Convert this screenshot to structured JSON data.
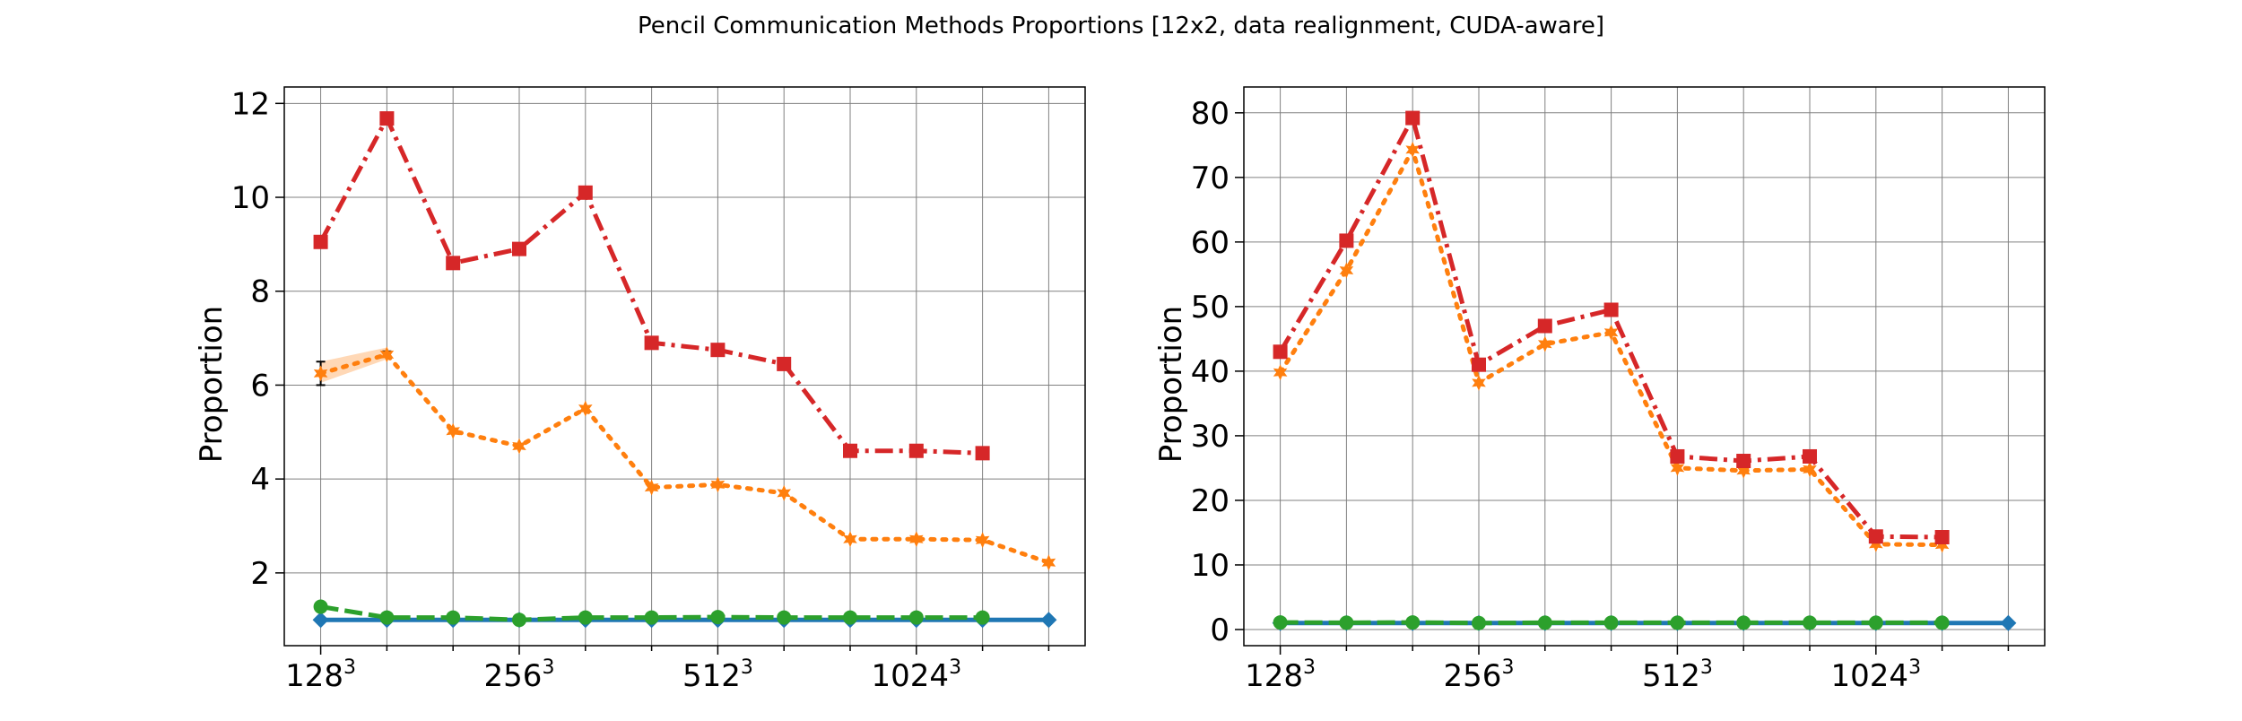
{
  "figure": {
    "title": "Pencil Communication Methods Proportions [12x2, data realignment, CUDA-aware]"
  },
  "colors": {
    "blue": "#1f77b4",
    "orange": "#ff7f0e",
    "green": "#2ca02c",
    "red": "#d62728",
    "grid": "#808080"
  },
  "chart_data": [
    {
      "type": "line",
      "ylabel": "Proportion",
      "ylim": [
        0.45,
        12.35
      ],
      "yticks": [
        2,
        4,
        6,
        8,
        10,
        12
      ],
      "x_major_ticks": [
        {
          "pos": 0,
          "base": "128",
          "exp": "3"
        },
        {
          "pos": 3,
          "base": "256",
          "exp": "3"
        },
        {
          "pos": 6,
          "base": "512",
          "exp": "3"
        },
        {
          "pos": 9,
          "base": "1024",
          "exp": "3"
        }
      ],
      "x_minor_ticks": [
        1,
        2,
        4,
        5,
        7,
        8,
        10,
        11
      ],
      "xlim": [
        -0.55,
        11.55
      ],
      "grid": true,
      "series": [
        {
          "color": "blue",
          "style": "solid",
          "marker": "diamond",
          "x": [
            0,
            1,
            2,
            3,
            4,
            5,
            6,
            7,
            8,
            9,
            10,
            11
          ],
          "values": [
            1.0,
            1.0,
            1.0,
            1.0,
            1.0,
            1.0,
            1.0,
            1.0,
            1.0,
            1.0,
            1.0,
            1.0
          ]
        },
        {
          "color": "green",
          "style": "dashed",
          "marker": "circle",
          "x": [
            0,
            1,
            2,
            3,
            4,
            5,
            6,
            7,
            8,
            9,
            10
          ],
          "values": [
            1.28,
            1.05,
            1.05,
            1.0,
            1.05,
            1.05,
            1.06,
            1.05,
            1.05,
            1.05,
            1.05
          ]
        },
        {
          "color": "orange",
          "style": "dotted",
          "marker": "star",
          "x": [
            0,
            1,
            2,
            3,
            4,
            5,
            6,
            7,
            8,
            9,
            10,
            11
          ],
          "values": [
            6.25,
            6.65,
            5.02,
            4.7,
            5.5,
            3.82,
            3.88,
            3.7,
            2.72,
            2.72,
            2.7,
            2.22
          ],
          "band": {
            "x": [
              0,
              1
            ],
            "lower": [
              6.05,
              6.55
            ],
            "upper": [
              6.5,
              6.8
            ]
          },
          "errorbars": [
            {
              "x": 0,
              "low": 6.0,
              "high": 6.5
            },
            {
              "x": 1,
              "low": 6.6,
              "high": 6.72
            }
          ]
        },
        {
          "color": "red",
          "style": "dashdot",
          "marker": "square",
          "x": [
            0,
            1,
            2,
            3,
            4,
            5,
            6,
            7,
            8,
            9,
            10
          ],
          "values": [
            9.05,
            11.68,
            8.6,
            8.9,
            10.1,
            6.9,
            6.75,
            6.45,
            4.6,
            4.6,
            4.55
          ]
        }
      ]
    },
    {
      "type": "line",
      "ylabel": "Proportion",
      "ylim": [
        -2.5,
        84
      ],
      "yticks": [
        0,
        10,
        20,
        30,
        40,
        50,
        60,
        70,
        80
      ],
      "x_major_ticks": [
        {
          "pos": 0,
          "base": "128",
          "exp": "3"
        },
        {
          "pos": 3,
          "base": "256",
          "exp": "3"
        },
        {
          "pos": 6,
          "base": "512",
          "exp": "3"
        },
        {
          "pos": 9,
          "base": "1024",
          "exp": "3"
        }
      ],
      "x_minor_ticks": [
        1,
        2,
        4,
        5,
        7,
        8,
        10,
        11
      ],
      "xlim": [
        -0.55,
        11.55
      ],
      "grid": true,
      "series": [
        {
          "color": "blue",
          "style": "solid",
          "marker": "diamond",
          "x": [
            0,
            1,
            2,
            3,
            4,
            5,
            6,
            7,
            8,
            9,
            10,
            11
          ],
          "values": [
            1.0,
            1.0,
            1.0,
            1.0,
            1.0,
            1.0,
            1.0,
            1.0,
            1.0,
            1.0,
            1.0,
            1.0
          ]
        },
        {
          "color": "green",
          "style": "dashed",
          "marker": "circle",
          "x": [
            0,
            1,
            2,
            3,
            4,
            5,
            6,
            7,
            8,
            9,
            10
          ],
          "values": [
            1.1,
            1.05,
            1.1,
            1.0,
            1.05,
            1.05,
            1.05,
            1.05,
            1.05,
            1.05,
            1.05
          ]
        },
        {
          "color": "orange",
          "style": "dotted",
          "marker": "star",
          "x": [
            0,
            1,
            2,
            3,
            4,
            5,
            6,
            7,
            8,
            9,
            10
          ],
          "values": [
            39.8,
            55.6,
            74.3,
            38.2,
            44.2,
            46.0,
            25.0,
            24.6,
            24.8,
            13.2,
            13.1
          ]
        },
        {
          "color": "red",
          "style": "dashdot",
          "marker": "square",
          "x": [
            0,
            1,
            2,
            3,
            4,
            5,
            6,
            7,
            8,
            9,
            10
          ],
          "values": [
            43.0,
            60.2,
            79.2,
            41.0,
            47.0,
            49.5,
            26.8,
            26.1,
            26.8,
            14.4,
            14.3
          ]
        }
      ]
    }
  ]
}
